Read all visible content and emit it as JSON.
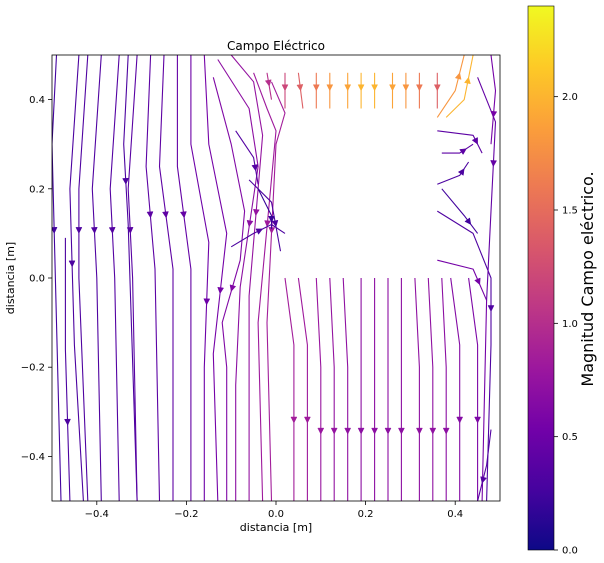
{
  "chart_data": {
    "type": "streamplot",
    "title": "Campo Eléctrico",
    "xlabel": "distancia [m]",
    "ylabel": "distancia [m]",
    "xlim": [
      -0.5,
      0.5
    ],
    "ylim": [
      -0.5,
      0.5
    ],
    "x_ticks": [
      -0.4,
      -0.2,
      0.0,
      0.2,
      0.4
    ],
    "x_tick_labels": [
      "−0.4",
      "−0.2",
      "0.0",
      "0.2",
      "0.4"
    ],
    "y_ticks": [
      0.4,
      0.2,
      0.0,
      -0.2,
      -0.4
    ],
    "y_tick_labels": [
      "0.4",
      "0.2",
      "0.0",
      "−0.2",
      "−0.4"
    ],
    "blank_region": {
      "x": [
        0.0,
        0.36
      ],
      "y": [
        0.0,
        0.36
      ]
    },
    "colorbar": {
      "label": "Magnitud Campo eléctrico.",
      "colormap": "plasma",
      "range": [
        0.0,
        2.4
      ],
      "ticks": [
        0.0,
        0.5,
        1.0,
        1.5,
        2.0
      ],
      "tick_labels": [
        "0.0",
        "0.5",
        "1.0",
        "1.5",
        "2.0"
      ],
      "colors": [
        "#0d0887",
        "#46039f",
        "#7201a8",
        "#9c179e",
        "#bd3786",
        "#d8576b",
        "#ed7953",
        "#fb9f3a",
        "#fdca26",
        "#f0f921"
      ]
    },
    "streamlines": [
      {
        "points": [
          [
            -0.49,
            0.5
          ],
          [
            -0.5,
            0.3
          ],
          [
            -0.49,
            -0.1
          ],
          [
            -0.48,
            -0.5
          ]
        ],
        "magnitude": 0.25
      },
      {
        "points": [
          [
            -0.47,
            0.09
          ],
          [
            -0.47,
            -0.16
          ],
          [
            -0.46,
            -0.5
          ]
        ],
        "magnitude": 0.3
      },
      {
        "points": [
          [
            -0.44,
            0.5
          ],
          [
            -0.46,
            0.2
          ],
          [
            -0.45,
            -0.15
          ],
          [
            -0.43,
            -0.5
          ]
        ],
        "magnitude": 0.3
      },
      {
        "points": [
          [
            -0.42,
            0.5
          ],
          [
            -0.44,
            0.2
          ],
          [
            -0.44,
            0.0
          ],
          [
            -0.42,
            -0.5
          ]
        ],
        "magnitude": 0.32
      },
      {
        "points": [
          [
            -0.39,
            0.5
          ],
          [
            -0.41,
            0.2
          ],
          [
            -0.4,
            0.0
          ],
          [
            -0.39,
            -0.5
          ]
        ],
        "magnitude": 0.33
      },
      {
        "points": [
          [
            -0.35,
            0.5
          ],
          [
            -0.37,
            0.2
          ],
          [
            -0.36,
            0.0
          ],
          [
            -0.35,
            -0.5
          ]
        ],
        "magnitude": 0.35
      },
      {
        "points": [
          [
            -0.33,
            0.5
          ],
          [
            -0.34,
            0.3
          ],
          [
            -0.33,
            0.12
          ],
          [
            -0.31,
            -0.5
          ]
        ],
        "magnitude": 0.3
      },
      {
        "points": [
          [
            -0.31,
            0.5
          ],
          [
            -0.33,
            0.2
          ],
          [
            -0.32,
            0.0
          ],
          [
            -0.31,
            -0.5
          ]
        ],
        "magnitude": 0.38
      },
      {
        "points": [
          [
            -0.28,
            0.5
          ],
          [
            -0.29,
            0.25
          ],
          [
            -0.27,
            0.02
          ],
          [
            -0.26,
            -0.5
          ]
        ],
        "magnitude": 0.4
      },
      {
        "points": [
          [
            -0.25,
            0.5
          ],
          [
            -0.26,
            0.25
          ],
          [
            -0.23,
            0.02
          ],
          [
            -0.23,
            -0.5
          ]
        ],
        "magnitude": 0.42
      },
      {
        "points": [
          [
            -0.22,
            0.5
          ],
          [
            -0.22,
            0.25
          ],
          [
            -0.19,
            0.02
          ],
          [
            -0.19,
            -0.5
          ]
        ],
        "magnitude": 0.45
      },
      {
        "points": [
          [
            -0.19,
            0.5
          ],
          [
            -0.19,
            0.3
          ],
          [
            -0.15,
            0.08
          ],
          [
            -0.16,
            -0.2
          ],
          [
            -0.16,
            -0.5
          ]
        ],
        "magnitude": 0.5
      },
      {
        "points": [
          [
            -0.16,
            0.5
          ],
          [
            -0.15,
            0.3
          ],
          [
            -0.11,
            0.1
          ],
          [
            -0.14,
            -0.17
          ],
          [
            -0.13,
            -0.5
          ]
        ],
        "magnitude": 0.55
      },
      {
        "points": [
          [
            -0.14,
            0.45
          ],
          [
            -0.1,
            0.3
          ],
          [
            -0.07,
            0.15
          ],
          [
            -0.08,
            0.04
          ],
          [
            -0.12,
            -0.1
          ],
          [
            -0.11,
            -0.2
          ],
          [
            -0.11,
            -0.5
          ]
        ],
        "magnitude": 0.62
      },
      {
        "points": [
          [
            -0.13,
            0.49
          ],
          [
            -0.06,
            0.38
          ],
          [
            -0.04,
            0.25
          ],
          [
            -0.08,
            -0.02
          ],
          [
            -0.09,
            -0.24
          ],
          [
            -0.09,
            -0.5
          ]
        ],
        "magnitude": 0.7
      },
      {
        "points": [
          [
            -0.1,
            0.5
          ],
          [
            -0.05,
            0.44
          ],
          [
            -0.03,
            0.32
          ],
          [
            -0.06,
            -0.04
          ],
          [
            -0.06,
            -0.24
          ],
          [
            -0.06,
            -0.5
          ]
        ],
        "magnitude": 0.75
      },
      {
        "points": [
          [
            -0.05,
            0.46
          ],
          [
            -0.02,
            0.38
          ],
          [
            0.0,
            0.33
          ],
          [
            -0.04,
            -0.1
          ],
          [
            -0.03,
            -0.5
          ]
        ],
        "magnitude": 0.82
      },
      {
        "points": [
          [
            -0.01,
            0.44
          ],
          [
            0.02,
            0.37
          ],
          [
            0.0,
            0.3
          ],
          [
            -0.02,
            -0.1
          ],
          [
            -0.01,
            -0.5
          ]
        ],
        "magnitude": 0.85
      },
      {
        "points": [
          [
            -0.09,
            0.33
          ],
          [
            -0.05,
            0.27
          ],
          [
            -0.04,
            0.21
          ]
        ],
        "magnitude": 0.35
      },
      {
        "points": [
          [
            -0.06,
            0.22
          ],
          [
            -0.01,
            0.17
          ],
          [
            0.01,
            0.06
          ]
        ],
        "magnitude": 0.3
      },
      {
        "points": [
          [
            -0.04,
            0.2
          ],
          [
            -0.01,
            0.14
          ],
          [
            -0.01,
            0.11
          ]
        ],
        "magnitude": 0.2
      },
      {
        "points": [
          [
            -0.1,
            0.07
          ],
          [
            -0.05,
            0.1
          ],
          [
            -0.01,
            0.12
          ],
          [
            0.02,
            0.1
          ]
        ],
        "magnitude": 0.3
      },
      {
        "points": [
          [
            0.02,
            0.0
          ],
          [
            0.04,
            -0.15
          ],
          [
            0.04,
            -0.5
          ]
        ],
        "magnitude": 0.85
      },
      {
        "points": [
          [
            0.05,
            0.0
          ],
          [
            0.07,
            -0.15
          ],
          [
            0.07,
            -0.5
          ]
        ],
        "magnitude": 0.82
      },
      {
        "points": [
          [
            0.09,
            0.0
          ],
          [
            0.1,
            -0.2
          ],
          [
            0.1,
            -0.5
          ]
        ],
        "magnitude": 0.78
      },
      {
        "points": [
          [
            0.12,
            0.0
          ],
          [
            0.13,
            -0.2
          ],
          [
            0.13,
            -0.5
          ]
        ],
        "magnitude": 0.75
      },
      {
        "points": [
          [
            0.15,
            0.0
          ],
          [
            0.16,
            -0.2
          ],
          [
            0.16,
            -0.5
          ]
        ],
        "magnitude": 0.72
      },
      {
        "points": [
          [
            0.19,
            0.0
          ],
          [
            0.19,
            -0.2
          ],
          [
            0.19,
            -0.5
          ]
        ],
        "magnitude": 0.7
      },
      {
        "points": [
          [
            0.22,
            0.0
          ],
          [
            0.22,
            -0.2
          ],
          [
            0.22,
            -0.5
          ]
        ],
        "magnitude": 0.7
      },
      {
        "points": [
          [
            0.25,
            0.0
          ],
          [
            0.25,
            -0.2
          ],
          [
            0.25,
            -0.5
          ]
        ],
        "magnitude": 0.7
      },
      {
        "points": [
          [
            0.28,
            0.0
          ],
          [
            0.28,
            -0.2
          ],
          [
            0.28,
            -0.5
          ]
        ],
        "magnitude": 0.7
      },
      {
        "points": [
          [
            0.31,
            0.0
          ],
          [
            0.32,
            -0.2
          ],
          [
            0.32,
            -0.5
          ]
        ],
        "magnitude": 0.72
      },
      {
        "points": [
          [
            0.34,
            0.0
          ],
          [
            0.35,
            -0.2
          ],
          [
            0.35,
            -0.5
          ]
        ],
        "magnitude": 0.72
      },
      {
        "points": [
          [
            0.37,
            0.0
          ],
          [
            0.38,
            -0.2
          ],
          [
            0.38,
            -0.5
          ]
        ],
        "magnitude": 0.7
      },
      {
        "points": [
          [
            0.39,
            0.0
          ],
          [
            0.41,
            -0.15
          ],
          [
            0.41,
            -0.5
          ]
        ],
        "magnitude": 0.65
      },
      {
        "points": [
          [
            0.43,
            0.0
          ],
          [
            0.45,
            -0.15
          ],
          [
            0.45,
            -0.5
          ]
        ],
        "magnitude": 0.6
      },
      {
        "points": [
          [
            0.36,
            0.04
          ],
          [
            0.44,
            0.02
          ],
          [
            0.47,
            -0.05
          ],
          [
            0.46,
            -0.5
          ]
        ],
        "magnitude": 0.55
      },
      {
        "points": [
          [
            0.48,
            -0.34
          ],
          [
            0.47,
            -0.42
          ],
          [
            0.45,
            -0.5
          ]
        ],
        "magnitude": 0.35
      },
      {
        "points": [
          [
            0.36,
            0.15
          ],
          [
            0.44,
            0.1
          ],
          [
            0.48,
            0.0
          ],
          [
            0.48,
            -0.15
          ],
          [
            0.47,
            -0.5
          ]
        ],
        "magnitude": 0.32
      },
      {
        "points": [
          [
            0.37,
            0.2
          ],
          [
            0.42,
            0.14
          ],
          [
            0.45,
            0.1
          ]
        ],
        "magnitude": 0.25
      },
      {
        "points": [
          [
            0.36,
            0.21
          ],
          [
            0.41,
            0.23
          ],
          [
            0.43,
            0.26
          ]
        ],
        "magnitude": 0.3
      },
      {
        "points": [
          [
            0.37,
            0.28
          ],
          [
            0.41,
            0.28
          ],
          [
            0.44,
            0.3
          ]
        ],
        "magnitude": 0.4
      },
      {
        "points": [
          [
            0.36,
            0.33
          ],
          [
            0.44,
            0.32
          ],
          [
            0.46,
            0.28
          ]
        ],
        "magnitude": 0.4
      },
      {
        "points": [
          [
            0.45,
            0.45
          ],
          [
            0.49,
            0.35
          ],
          [
            0.48,
            0.15
          ],
          [
            0.47,
            -0.05
          ]
        ],
        "magnitude": 0.45
      },
      {
        "points": [
          [
            0.48,
            0.5
          ],
          [
            0.49,
            0.42
          ],
          [
            0.48,
            0.3
          ]
        ],
        "magnitude": 0.55
      },
      {
        "points": [
          [
            0.36,
            0.36
          ],
          [
            0.4,
            0.42
          ],
          [
            0.42,
            0.5
          ]
        ],
        "magnitude": 1.8
      },
      {
        "points": [
          [
            0.38,
            0.36
          ],
          [
            0.42,
            0.4
          ],
          [
            0.44,
            0.5
          ]
        ],
        "magnitude": 2.0
      },
      {
        "points": [
          [
            0.02,
            0.46
          ],
          [
            0.02,
            0.38
          ]
        ],
        "magnitude": 1.2
      },
      {
        "points": [
          [
            0.05,
            0.46
          ],
          [
            0.06,
            0.38
          ]
        ],
        "magnitude": 1.4
      },
      {
        "points": [
          [
            0.09,
            0.46
          ],
          [
            0.09,
            0.38
          ]
        ],
        "magnitude": 1.6
      },
      {
        "points": [
          [
            0.12,
            0.46
          ],
          [
            0.12,
            0.38
          ]
        ],
        "magnitude": 1.8
      },
      {
        "points": [
          [
            0.16,
            0.46
          ],
          [
            0.16,
            0.38
          ]
        ],
        "magnitude": 1.9
      },
      {
        "points": [
          [
            0.19,
            0.46
          ],
          [
            0.19,
            0.38
          ]
        ],
        "magnitude": 2.0
      },
      {
        "points": [
          [
            0.22,
            0.46
          ],
          [
            0.22,
            0.38
          ]
        ],
        "magnitude": 2.0
      },
      {
        "points": [
          [
            0.26,
            0.46
          ],
          [
            0.26,
            0.38
          ]
        ],
        "magnitude": 1.9
      },
      {
        "points": [
          [
            0.29,
            0.46
          ],
          [
            0.29,
            0.38
          ]
        ],
        "magnitude": 1.8
      },
      {
        "points": [
          [
            0.32,
            0.46
          ],
          [
            0.32,
            0.38
          ]
        ],
        "magnitude": 1.6
      },
      {
        "points": [
          [
            0.36,
            0.46
          ],
          [
            0.36,
            0.38
          ]
        ],
        "magnitude": 1.4
      },
      {
        "points": [
          [
            -0.02,
            0.46
          ],
          [
            -0.01,
            0.4
          ]
        ],
        "magnitude": 1.0
      }
    ]
  }
}
